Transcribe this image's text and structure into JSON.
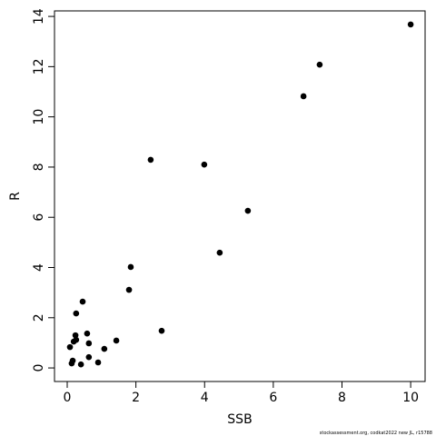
{
  "chart_data": {
    "type": "scatter",
    "x_label": "SSB",
    "y_label": "R",
    "footer": "stockassessment.org, codkat2022 new JL, r15788",
    "color": "#000000",
    "x": [
      10.0,
      7.35,
      6.88,
      2.43,
      3.99,
      5.26,
      4.44,
      1.85,
      1.8,
      0.45,
      0.26,
      2.75,
      0.58,
      0.24,
      0.26,
      0.19,
      1.43,
      0.63,
      0.08,
      1.08,
      0.63,
      0.16,
      0.13,
      0.9,
      0.4
    ],
    "values": [
      13.68,
      12.08,
      10.82,
      8.29,
      8.1,
      6.26,
      4.59,
      4.02,
      3.11,
      2.64,
      2.17,
      1.48,
      1.37,
      1.3,
      1.12,
      1.05,
      1.09,
      0.98,
      0.83,
      0.76,
      0.43,
      0.29,
      0.18,
      0.22,
      0.14
    ],
    "xlim": [
      -0.37,
      10.42
    ],
    "ylim": [
      -0.54,
      14.22
    ],
    "xticks": [
      0,
      2,
      4,
      6,
      8,
      10
    ],
    "yticks": [
      0,
      2,
      4,
      6,
      8,
      10,
      12,
      14
    ]
  }
}
